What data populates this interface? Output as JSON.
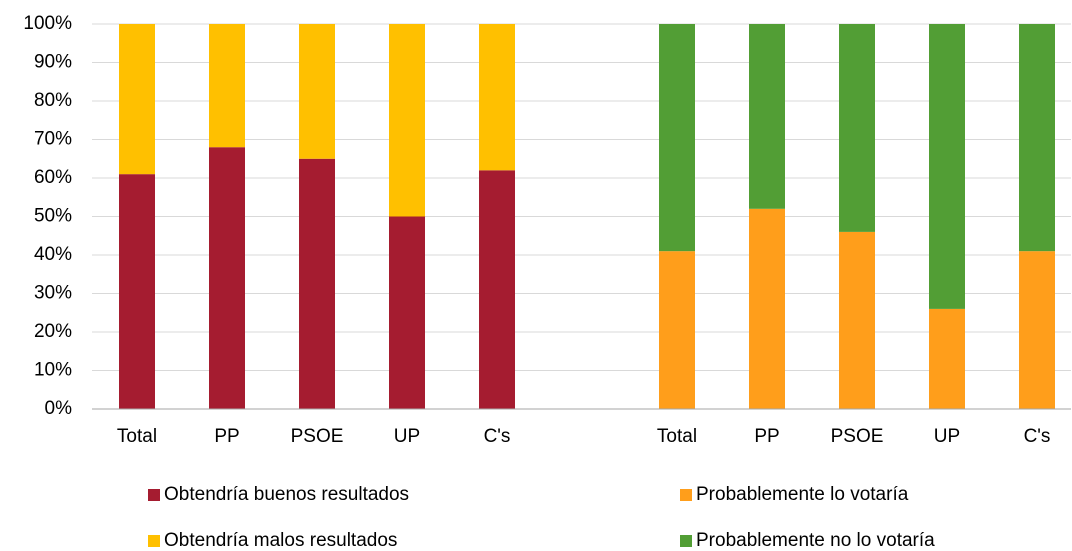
{
  "chart_data": {
    "type": "stacked_bar",
    "categories": [
      "Total",
      "PP",
      "PSOE",
      "UP",
      "C's",
      null,
      "Total",
      "PP",
      "PSOE",
      "UP",
      "C's"
    ],
    "series": [
      {
        "name": "Obtendría buenos resultados",
        "color": "#a51c30",
        "values": [
          61,
          68,
          65,
          50,
          62,
          null,
          null,
          null,
          null,
          null,
          null
        ]
      },
      {
        "name": "Obtendría malos resultados",
        "color": "#ffc000",
        "values": [
          39,
          32,
          35,
          50,
          38,
          null,
          null,
          null,
          null,
          null,
          null
        ]
      },
      {
        "name": "Probablemente lo votaría",
        "color": "#ff9e1b",
        "values": [
          null,
          null,
          null,
          null,
          null,
          null,
          41,
          52,
          46,
          26,
          41
        ]
      },
      {
        "name": "Probablemente no lo votaría",
        "color": "#529e35",
        "values": [
          null,
          null,
          null,
          null,
          null,
          null,
          59,
          48,
          54,
          74,
          59
        ]
      }
    ],
    "ylim": [
      0,
      100
    ],
    "yticks": [
      {
        "value": 0,
        "label": "0%"
      },
      {
        "value": 10,
        "label": "10%"
      },
      {
        "value": 20,
        "label": "20%"
      },
      {
        "value": 30,
        "label": "30%"
      },
      {
        "value": 40,
        "label": "40%"
      },
      {
        "value": 50,
        "label": "50%"
      },
      {
        "value": 60,
        "label": "60%"
      },
      {
        "value": 70,
        "label": "70%"
      },
      {
        "value": 80,
        "label": "80%"
      },
      {
        "value": 90,
        "label": "90%"
      },
      {
        "value": 100,
        "label": "100%"
      }
    ],
    "grid": true
  }
}
